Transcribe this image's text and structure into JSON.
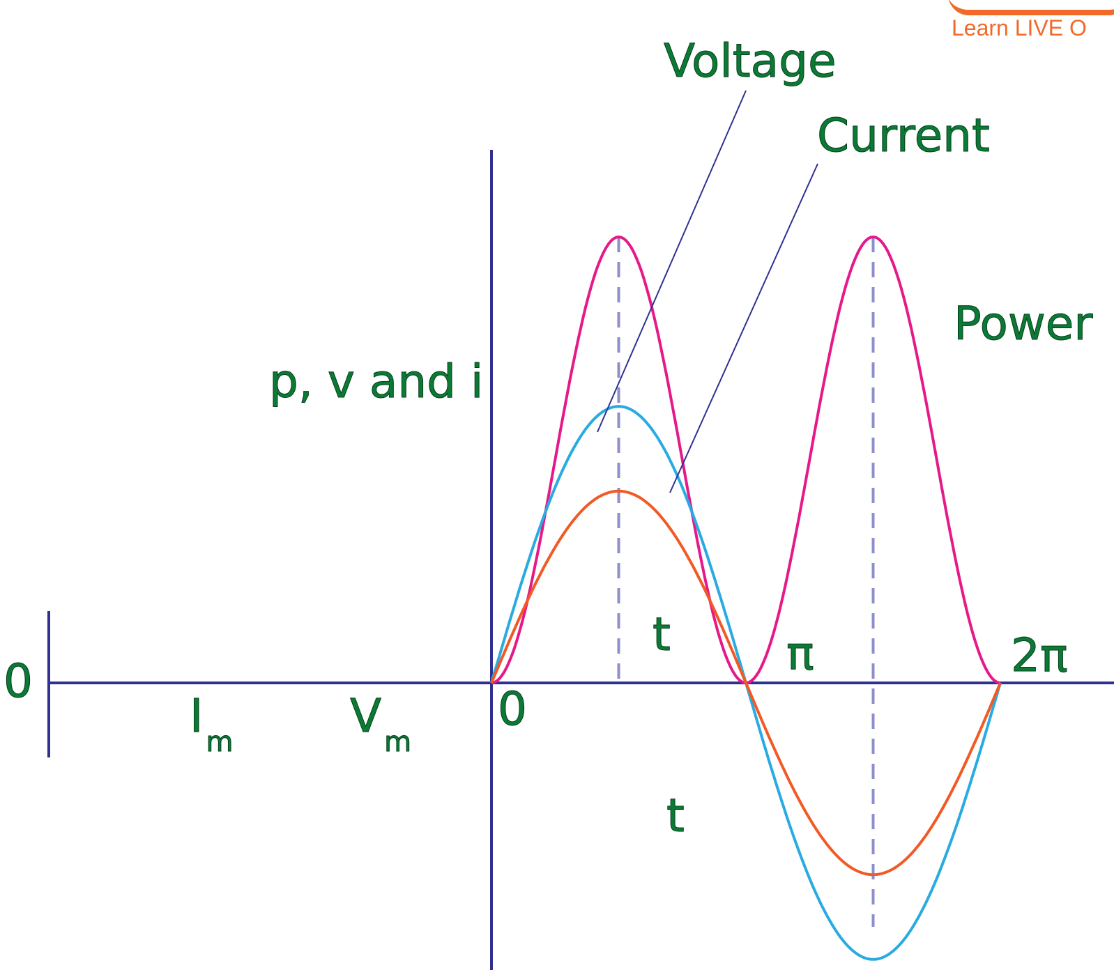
{
  "logo": {
    "tagline": "Learn LIVE O",
    "color": "#f26a2a"
  },
  "labels": {
    "y_axis": "p, v and i",
    "voltage": "Voltage",
    "current": "Current",
    "power": "Power",
    "origin": "0",
    "left_zero": "0",
    "pi": "π",
    "two_pi": "2π",
    "t_upper": "t",
    "t_lower": "t",
    "im_main": "I",
    "im_sub": "m",
    "vm_main": "V",
    "vm_sub": "m"
  },
  "colors": {
    "axis": "#2e3192",
    "power": "#e6198a",
    "voltage": "#29abe2",
    "current": "#f15a24",
    "guide": "#8c8fc8",
    "text": "#0a7a35"
  },
  "chart_data": {
    "type": "line",
    "x_ticks": [
      "0",
      "π",
      "2π"
    ],
    "series": [
      {
        "name": "Power",
        "formula": "sin^2",
        "relative_amplitude": 1.0
      },
      {
        "name": "Voltage",
        "formula": "sin",
        "relative_amplitude": 0.62
      },
      {
        "name": "Current",
        "formula": "sin",
        "relative_amplitude": 0.43
      }
    ]
  }
}
